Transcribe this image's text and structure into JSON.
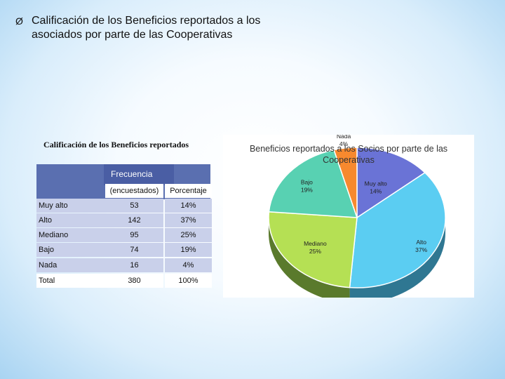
{
  "slide": {
    "bullet": "Ø",
    "title": "Calificación de los Beneficios reportados a los asociados por parte de las Cooperativas"
  },
  "table": {
    "title": "Calificación de los Beneficios reportados",
    "group_header": "Frecuencia",
    "col_encuestados": "(encuestados)",
    "col_porcentaje": "Porcentaje",
    "rows": [
      {
        "label": "Muy alto",
        "frecuencia": "53",
        "porcentaje": "14%"
      },
      {
        "label": "Alto",
        "frecuencia": "142",
        "porcentaje": "37%"
      },
      {
        "label": "Mediano",
        "frecuencia": "95",
        "porcentaje": "25%"
      },
      {
        "label": "Bajo",
        "frecuencia": "74",
        "porcentaje": "19%"
      },
      {
        "label": "Nada",
        "frecuencia": "16",
        "porcentaje": "4%"
      },
      {
        "label": "Total",
        "frecuencia": "380",
        "porcentaje": "100%"
      }
    ]
  },
  "chart_data": {
    "type": "pie",
    "title": "Beneficios reportados a los Socios por parte de las Cooperativas",
    "labels": [
      "Muy alto",
      "Alto",
      "Mediano",
      "Bajo",
      "Nada"
    ],
    "values": [
      53,
      142,
      95,
      74,
      16
    ],
    "data_labels": [
      "14%",
      "37%",
      "25%",
      "19%",
      "4%"
    ],
    "colors": [
      "#6a73d6",
      "#5bcdf2",
      "#b5e054",
      "#58d1b2",
      "#f7892e"
    ],
    "side_colors": [
      "#3e4791",
      "#2f7792",
      "#5a7a2c",
      "#2c7a66",
      "#9a5018"
    ],
    "legend": "none",
    "three_d": true
  }
}
